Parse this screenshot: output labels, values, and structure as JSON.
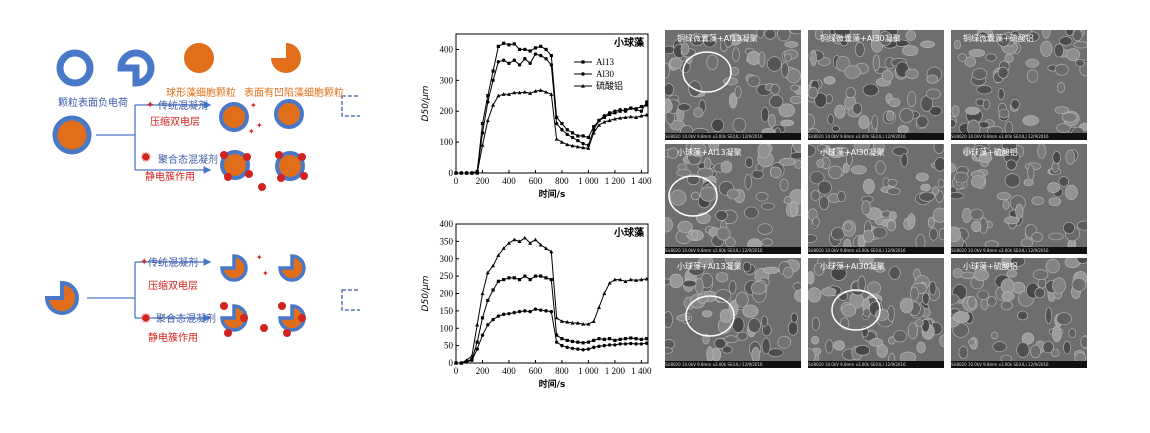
{
  "mechanism": {
    "labels": {
      "surface_charge": "颗粒表面负电荷",
      "spherical_algae": "球形藻细胞颗粒",
      "concave_algae": "表面有凹陷藻细胞颗粒",
      "traditional_coagulant": "传统混凝剂",
      "compress_double_layer": "压缩双电层",
      "polymeric_coagulant": "聚合态混凝剂",
      "electrostatic_patch": "静电簇作用"
    },
    "colors": {
      "algae": "#e06e1a",
      "charge": "#4a78c8",
      "coagulant": "#d2231f"
    }
  },
  "chart_data": [
    {
      "type": "line",
      "title": "小球藻",
      "xlabel": "时间/s",
      "ylabel": "D50/μm",
      "xlim": [
        0,
        1450
      ],
      "ylim": [
        0,
        450
      ],
      "xticks": [
        0,
        200,
        400,
        600,
        800,
        1000,
        1200,
        1400
      ],
      "xtick_labels": [
        "0",
        "200",
        "400",
        "600",
        "800",
        "1 000",
        "1 200",
        "1 400"
      ],
      "yticks": [
        0,
        100,
        200,
        300,
        400
      ],
      "legend": [
        "Al13",
        "Al30",
        "硫酸铝"
      ],
      "series": [
        {
          "name": "Al13",
          "marker": "square",
          "x": [
            0,
            40,
            80,
            120,
            160,
            200,
            240,
            280,
            320,
            360,
            400,
            440,
            480,
            520,
            560,
            600,
            640,
            680,
            720,
            760,
            800,
            840,
            880,
            920,
            960,
            1000,
            1040,
            1080,
            1120,
            1160,
            1200,
            1240,
            1280,
            1320,
            1360,
            1400,
            1440
          ],
          "y": [
            0,
            0,
            0,
            0,
            5,
            160,
            250,
            330,
            410,
            420,
            415,
            418,
            400,
            400,
            395,
            405,
            410,
            400,
            380,
            180,
            160,
            140,
            130,
            120,
            120,
            115,
            150,
            170,
            180,
            190,
            195,
            200,
            205,
            210,
            208,
            215,
            220
          ]
        },
        {
          "name": "Al30",
          "marker": "circle",
          "x": [
            0,
            40,
            80,
            120,
            160,
            200,
            240,
            280,
            320,
            360,
            400,
            440,
            480,
            520,
            560,
            600,
            640,
            680,
            720,
            760,
            800,
            840,
            880,
            920,
            960,
            1000,
            1040,
            1080,
            1120,
            1160,
            1200,
            1240,
            1280,
            1320,
            1360,
            1400,
            1440
          ],
          "y": [
            0,
            0,
            0,
            0,
            5,
            130,
            230,
            300,
            360,
            365,
            355,
            365,
            350,
            370,
            355,
            385,
            380,
            370,
            350,
            160,
            140,
            125,
            115,
            105,
            95,
            90,
            140,
            170,
            185,
            195,
            200,
            205,
            200,
            210,
            205,
            200,
            230
          ]
        },
        {
          "name": "硫酸铝",
          "marker": "triangle",
          "x": [
            0,
            40,
            80,
            120,
            160,
            200,
            240,
            280,
            320,
            360,
            400,
            440,
            480,
            520,
            560,
            600,
            640,
            680,
            720,
            760,
            800,
            840,
            880,
            920,
            960,
            1000,
            1040,
            1080,
            1120,
            1160,
            1200,
            1240,
            1280,
            1320,
            1360,
            1400,
            1440
          ],
          "y": [
            0,
            0,
            0,
            0,
            0,
            90,
            170,
            220,
            250,
            255,
            255,
            260,
            260,
            262,
            258,
            265,
            268,
            262,
            255,
            110,
            100,
            92,
            88,
            85,
            82,
            80,
            130,
            155,
            165,
            170,
            175,
            178,
            180,
            182,
            180,
            185,
            188
          ]
        }
      ]
    },
    {
      "type": "line",
      "title": "小球藻",
      "xlabel": "时间/s",
      "ylabel": "D50/μm",
      "xlim": [
        0,
        1450
      ],
      "ylim": [
        0,
        400
      ],
      "xticks": [
        0,
        200,
        400,
        600,
        800,
        1000,
        1200,
        1400
      ],
      "xtick_labels": [
        "0",
        "200",
        "400",
        "600",
        "800",
        "1 000",
        "1 200",
        "1 400"
      ],
      "yticks": [
        0,
        50,
        100,
        150,
        200,
        250,
        300,
        350,
        400
      ],
      "series": [
        {
          "name": "Al13",
          "marker": "square",
          "x": [
            0,
            40,
            80,
            120,
            160,
            200,
            240,
            280,
            320,
            360,
            400,
            440,
            480,
            520,
            560,
            600,
            640,
            680,
            720,
            760,
            800,
            840,
            880,
            920,
            960,
            1000,
            1040,
            1080,
            1120,
            1160,
            1200,
            1240,
            1280,
            1320,
            1360,
            1400,
            1440
          ],
          "y": [
            0,
            0,
            5,
            10,
            60,
            130,
            180,
            210,
            235,
            240,
            245,
            245,
            240,
            250,
            240,
            250,
            250,
            245,
            240,
            80,
            70,
            65,
            62,
            60,
            58,
            60,
            65,
            70,
            68,
            70,
            65,
            68,
            70,
            72,
            70,
            68,
            70
          ]
        },
        {
          "name": "Al30",
          "marker": "circle",
          "x": [
            0,
            40,
            80,
            120,
            160,
            200,
            240,
            280,
            320,
            360,
            400,
            440,
            480,
            520,
            560,
            600,
            640,
            680,
            720,
            760,
            800,
            840,
            880,
            920,
            960,
            1000,
            1040,
            1080,
            1120,
            1160,
            1200,
            1240,
            1280,
            1320,
            1360,
            1400,
            1440
          ],
          "y": [
            0,
            0,
            3,
            8,
            40,
            80,
            110,
            125,
            135,
            140,
            142,
            145,
            148,
            150,
            148,
            155,
            152,
            150,
            148,
            60,
            50,
            45,
            42,
            40,
            38,
            40,
            45,
            48,
            50,
            52,
            52,
            55,
            55,
            56,
            55,
            55,
            57
          ]
        },
        {
          "name": "硫酸铝",
          "marker": "triangle",
          "x": [
            0,
            40,
            80,
            120,
            160,
            200,
            240,
            280,
            320,
            360,
            400,
            440,
            480,
            520,
            560,
            600,
            640,
            680,
            720,
            760,
            800,
            840,
            880,
            920,
            960,
            1000,
            1040,
            1080,
            1120,
            1160,
            1200,
            1240,
            1280,
            1320,
            1360,
            1400,
            1440
          ],
          "y": [
            0,
            0,
            8,
            20,
            110,
            200,
            260,
            280,
            310,
            330,
            345,
            355,
            350,
            360,
            345,
            355,
            340,
            330,
            320,
            130,
            120,
            118,
            115,
            115,
            112,
            112,
            120,
            160,
            200,
            230,
            240,
            240,
            235,
            240,
            238,
            240,
            242
          ]
        }
      ]
    }
  ],
  "sem": {
    "labels": [
      "铜绿微囊藻+Al13凝聚",
      "铜绿微囊藻+Al30凝聚",
      "铜绿微囊藻+硫酸铝",
      "小球藻+Al13凝聚",
      "小球藻+Al30凝聚",
      "小球藻+硫酸铝",
      "小球藻+Al13凝聚",
      "小球藻+Al30凝聚",
      "小球藻+硫酸铝"
    ],
    "info": "SU8020 10.0kV 9.8mm x3.00k SE(UL) 12/9/2016"
  }
}
